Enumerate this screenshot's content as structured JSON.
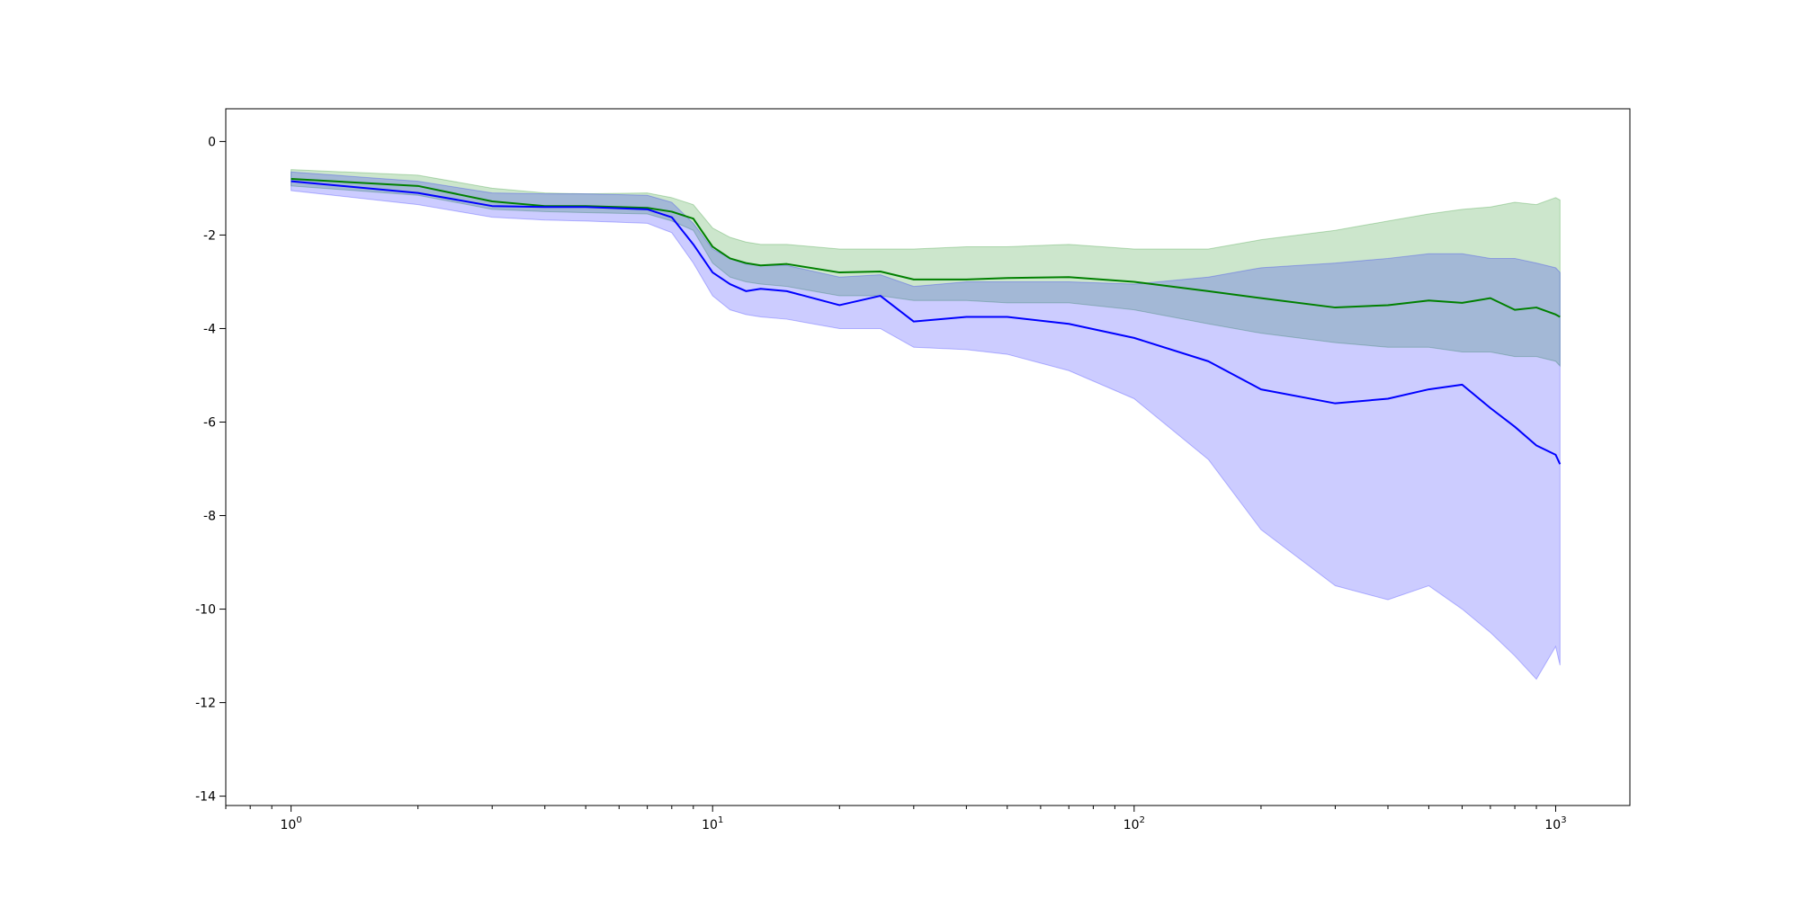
{
  "chart_data": {
    "type": "line",
    "title": "",
    "xlabel": "",
    "ylabel": "",
    "xscale": "log",
    "xlim": [
      0.7,
      1500
    ],
    "ylim": [
      -14.2,
      0.7
    ],
    "grid": false,
    "legend": "none",
    "x_ticks": [
      {
        "base": "10",
        "exp": "0",
        "value": 1
      },
      {
        "base": "10",
        "exp": "1",
        "value": 10
      },
      {
        "base": "10",
        "exp": "2",
        "value": 100
      },
      {
        "base": "10",
        "exp": "3",
        "value": 1000
      }
    ],
    "y_ticks": [
      {
        "label": "0",
        "value": 0
      },
      {
        "label": "-2",
        "value": -2
      },
      {
        "label": "-4",
        "value": -4
      },
      {
        "label": "-6",
        "value": -6
      },
      {
        "label": "-8",
        "value": -8
      },
      {
        "label": "-10",
        "value": -10
      },
      {
        "label": "-12",
        "value": -12
      },
      {
        "label": "-14",
        "value": -14
      }
    ],
    "series": [
      {
        "color": "#008000",
        "band_color": "#008000",
        "band_opacity": 0.2,
        "x": [
          1,
          2,
          3,
          4,
          5,
          7,
          8,
          9,
          10,
          11,
          12,
          13,
          15,
          20,
          25,
          30,
          40,
          50,
          70,
          100,
          150,
          200,
          300,
          400,
          500,
          600,
          700,
          800,
          900,
          1000,
          1024
        ],
        "y": [
          -0.8,
          -0.95,
          -1.28,
          -1.38,
          -1.38,
          -1.42,
          -1.5,
          -1.65,
          -2.25,
          -2.5,
          -2.6,
          -2.65,
          -2.62,
          -2.8,
          -2.78,
          -2.95,
          -2.95,
          -2.92,
          -2.9,
          -3.0,
          -3.2,
          -3.35,
          -3.55,
          -3.5,
          -3.4,
          -3.45,
          -3.35,
          -3.6,
          -3.55,
          -3.7,
          -3.75
        ],
        "lower": [
          -0.95,
          -1.15,
          -1.45,
          -1.5,
          -1.52,
          -1.55,
          -1.7,
          -1.9,
          -2.6,
          -2.9,
          -3.0,
          -3.05,
          -3.1,
          -3.3,
          -3.3,
          -3.4,
          -3.4,
          -3.45,
          -3.45,
          -3.6,
          -3.9,
          -4.1,
          -4.3,
          -4.4,
          -4.4,
          -4.5,
          -4.5,
          -4.6,
          -4.6,
          -4.7,
          -4.8
        ],
        "upper": [
          -0.6,
          -0.72,
          -1.0,
          -1.1,
          -1.12,
          -1.1,
          -1.2,
          -1.35,
          -1.85,
          -2.05,
          -2.15,
          -2.2,
          -2.2,
          -2.3,
          -2.3,
          -2.3,
          -2.25,
          -2.25,
          -2.2,
          -2.3,
          -2.3,
          -2.1,
          -1.9,
          -1.7,
          -1.55,
          -1.45,
          -1.4,
          -1.3,
          -1.35,
          -1.2,
          -1.25
        ]
      },
      {
        "color": "#0000ff",
        "band_color": "#0000ff",
        "band_opacity": 0.2,
        "x": [
          1,
          2,
          3,
          4,
          5,
          7,
          8,
          9,
          10,
          11,
          12,
          13,
          15,
          20,
          25,
          30,
          40,
          50,
          70,
          100,
          150,
          200,
          300,
          400,
          500,
          600,
          700,
          800,
          900,
          1000,
          1024
        ],
        "y": [
          -0.85,
          -1.1,
          -1.38,
          -1.4,
          -1.4,
          -1.45,
          -1.62,
          -2.2,
          -2.8,
          -3.05,
          -3.2,
          -3.15,
          -3.2,
          -3.5,
          -3.3,
          -3.85,
          -3.75,
          -3.75,
          -3.9,
          -4.2,
          -4.7,
          -5.3,
          -5.6,
          -5.5,
          -5.3,
          -5.2,
          -5.7,
          -6.1,
          -6.5,
          -6.7,
          -6.9
        ],
        "lower": [
          -1.05,
          -1.35,
          -1.62,
          -1.68,
          -1.7,
          -1.75,
          -1.95,
          -2.6,
          -3.3,
          -3.6,
          -3.7,
          -3.75,
          -3.8,
          -4.0,
          -4.0,
          -4.4,
          -4.45,
          -4.55,
          -4.9,
          -5.5,
          -6.8,
          -8.3,
          -9.5,
          -9.8,
          -9.5,
          -10.0,
          -10.5,
          -11.0,
          -11.5,
          -10.8,
          -11.2
        ],
        "upper": [
          -0.65,
          -0.85,
          -1.1,
          -1.12,
          -1.12,
          -1.15,
          -1.3,
          -1.75,
          -2.3,
          -2.5,
          -2.62,
          -2.65,
          -2.65,
          -2.9,
          -2.85,
          -3.1,
          -3.0,
          -3.0,
          -3.0,
          -3.05,
          -2.9,
          -2.7,
          -2.6,
          -2.5,
          -2.4,
          -2.4,
          -2.5,
          -2.5,
          -2.6,
          -2.7,
          -2.8
        ]
      }
    ]
  }
}
